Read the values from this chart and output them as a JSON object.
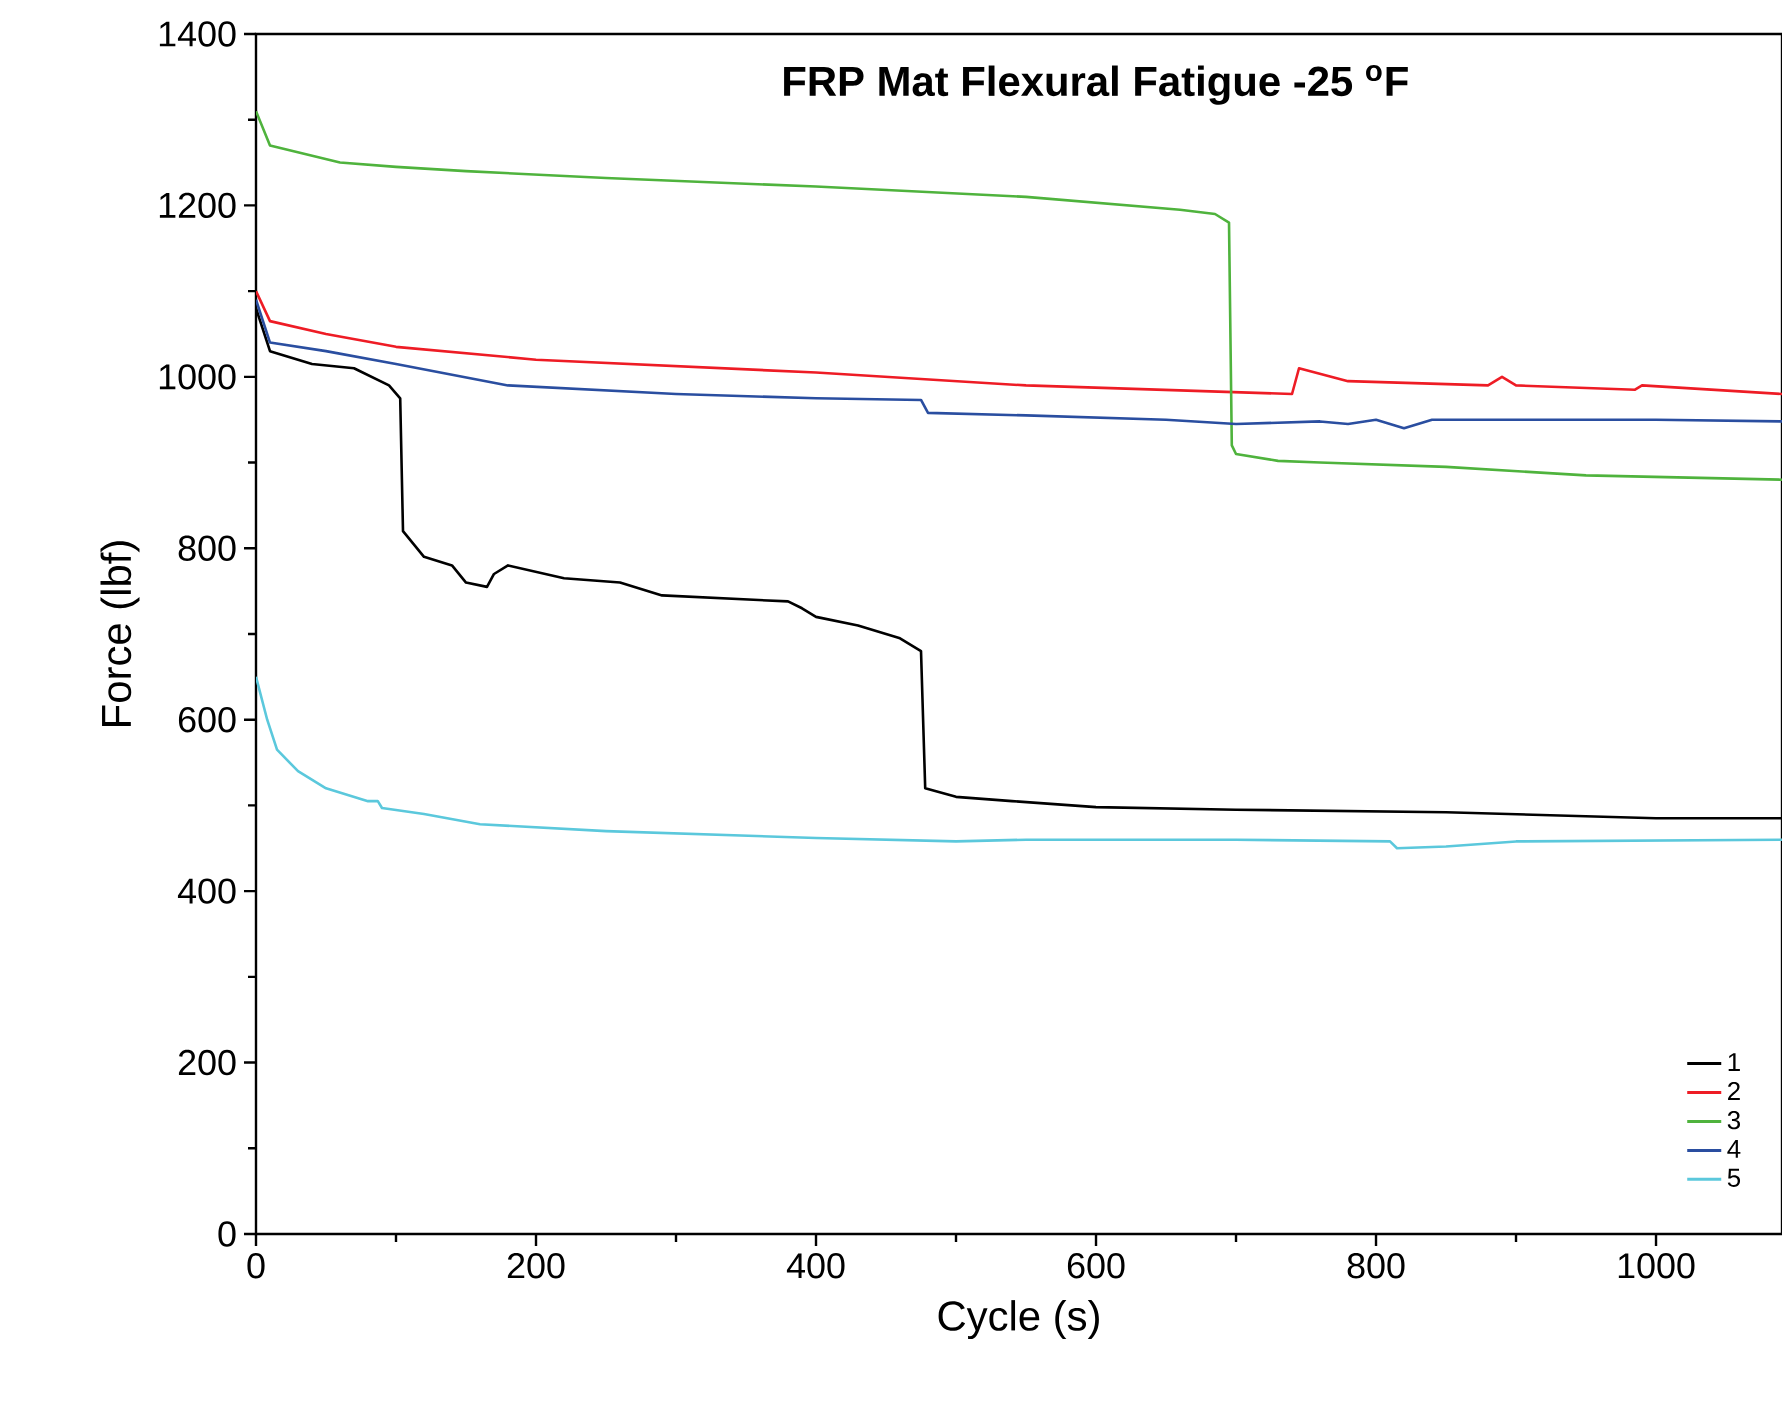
{
  "chart_data": {
    "type": "line",
    "title": "FRP Mat Flexural Fatigue -25 $^{o}$F",
    "xlabel": "Cycle (s)",
    "ylabel": "Force (lbf)",
    "xlim": [
      0,
      1090
    ],
    "ylim": [
      0,
      1400
    ],
    "xticks": [
      0,
      200,
      400,
      600,
      800,
      1000
    ],
    "yticks": [
      0,
      200,
      400,
      600,
      800,
      1000,
      1200,
      1400
    ],
    "grid": false,
    "legend": "bottom right",
    "marker": "none",
    "line_style": "solid",
    "series": [
      {
        "name": "1",
        "color": "#000000",
        "x": [
          0,
          10,
          40,
          70,
          95,
          103,
          105,
          120,
          140,
          150,
          165,
          170,
          180,
          220,
          260,
          290,
          380,
          390,
          400,
          430,
          460,
          475,
          478,
          500,
          540,
          600,
          700,
          850,
          1000,
          1090
        ],
        "values": [
          1080,
          1030,
          1015,
          1010,
          990,
          975,
          820,
          790,
          780,
          760,
          755,
          770,
          780,
          765,
          760,
          745,
          738,
          730,
          720,
          710,
          695,
          680,
          520,
          510,
          505,
          498,
          495,
          492,
          485,
          485
        ]
      },
      {
        "name": "2",
        "color": "#ee1c25",
        "x": [
          0,
          10,
          50,
          100,
          200,
          400,
          550,
          740,
          745,
          780,
          880,
          890,
          900,
          985,
          990,
          1090
        ],
        "values": [
          1100,
          1065,
          1050,
          1035,
          1020,
          1005,
          990,
          980,
          1010,
          995,
          990,
          1000,
          990,
          985,
          990,
          980
        ]
      },
      {
        "name": "3",
        "color": "#4fb33d",
        "x": [
          0,
          10,
          60,
          100,
          150,
          250,
          400,
          550,
          660,
          685,
          695,
          697,
          700,
          730,
          760,
          850,
          950,
          1090
        ],
        "values": [
          1310,
          1270,
          1250,
          1245,
          1240,
          1232,
          1222,
          1210,
          1195,
          1190,
          1180,
          920,
          910,
          902,
          900,
          895,
          885,
          880
        ]
      },
      {
        "name": "4",
        "color": "#2a4ea0",
        "x": [
          0,
          10,
          50,
          100,
          180,
          300,
          400,
          475,
          480,
          550,
          650,
          700,
          760,
          780,
          800,
          820,
          840,
          1000,
          1090
        ],
        "values": [
          1090,
          1040,
          1030,
          1015,
          990,
          980,
          975,
          973,
          958,
          955,
          950,
          945,
          948,
          945,
          950,
          940,
          950,
          950,
          948
        ]
      },
      {
        "name": "5",
        "color": "#5bc8dc",
        "x": [
          0,
          8,
          15,
          30,
          50,
          80,
          87,
          90,
          120,
          160,
          250,
          400,
          500,
          550,
          700,
          810,
          815,
          850,
          900,
          1090
        ],
        "values": [
          650,
          600,
          565,
          540,
          520,
          505,
          505,
          497,
          490,
          478,
          470,
          462,
          458,
          460,
          460,
          458,
          450,
          452,
          458,
          460
        ]
      }
    ]
  }
}
